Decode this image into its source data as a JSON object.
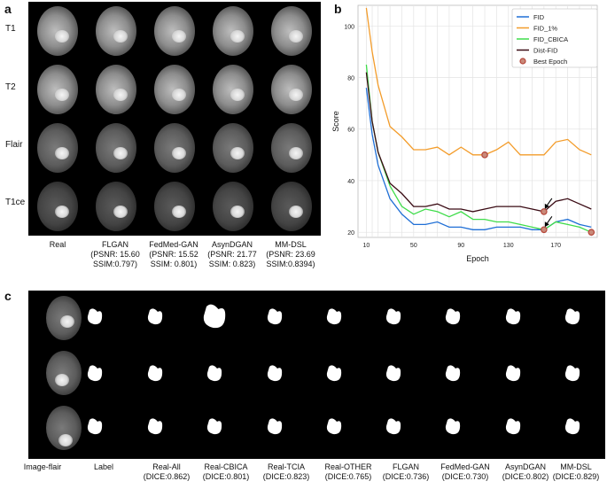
{
  "panels": {
    "a": "a",
    "b": "b",
    "c": "c"
  },
  "panel_a": {
    "row_labels": [
      "T1",
      "T2",
      "Flair",
      "T1ce"
    ],
    "col_labels": [
      [
        "Real",
        "",
        ""
      ],
      [
        "FLGAN",
        "(PSNR: 15.60",
        "SSIM:0.797)"
      ],
      [
        "FedMed-GAN",
        "(PSNR: 15.52",
        "SSIM: 0.801)"
      ],
      [
        "AsynDGAN",
        "(PSNR: 21.77",
        "SSIM: 0.823)"
      ],
      [
        "MM-DSL",
        "(PSNR: 23.69",
        "SSIM:0.8394)"
      ]
    ]
  },
  "chart_data": {
    "type": "line",
    "xlabel": "Epoch",
    "ylabel": "Score",
    "x": [
      10,
      15,
      20,
      30,
      40,
      50,
      60,
      70,
      80,
      90,
      100,
      110,
      120,
      130,
      140,
      150,
      160,
      170,
      180,
      190,
      200
    ],
    "xticks": [
      10,
      50,
      90,
      130,
      170
    ],
    "yticks": [
      20,
      40,
      60,
      80,
      100
    ],
    "ylim": [
      18,
      108
    ],
    "xlim": [
      3,
      205
    ],
    "series": [
      {
        "name": "FID",
        "color": "#1f6fd6",
        "values": [
          76,
          58,
          46,
          33,
          27,
          23,
          23,
          24,
          22,
          22,
          21,
          21,
          22,
          22,
          22,
          21,
          21,
          24,
          25,
          23,
          22
        ]
      },
      {
        "name": "FID_1%",
        "color": "#f39c2a",
        "values": [
          107,
          90,
          77,
          61,
          57,
          52,
          52,
          53,
          50,
          53,
          50,
          50,
          52,
          55,
          50,
          50,
          50,
          55,
          56,
          52,
          50
        ]
      },
      {
        "name": "FID_CBICA",
        "color": "#3fdc4a",
        "values": [
          85,
          63,
          51,
          38,
          30,
          27,
          29,
          28,
          26,
          28,
          25,
          25,
          24,
          24,
          23,
          22,
          21,
          24,
          23,
          22,
          20
        ]
      },
      {
        "name": "Dist-FID",
        "color": "#3a0b14",
        "values": [
          82,
          63,
          51,
          39,
          35,
          30,
          30,
          31,
          29,
          29,
          28,
          29,
          30,
          30,
          30,
          29,
          28,
          32,
          33,
          31,
          29
        ]
      }
    ],
    "best_epoch_label": "Best Epoch",
    "best_points": [
      {
        "x": 110,
        "y": 50
      },
      {
        "x": 160,
        "y": 28
      },
      {
        "x": 160,
        "y": 21
      },
      {
        "x": 200,
        "y": 20
      }
    ],
    "arrows_at": [
      {
        "x": 160,
        "y": 28
      },
      {
        "x": 160,
        "y": 21
      }
    ],
    "grid": true,
    "legend": "top-right"
  },
  "panel_c": {
    "col_labels": [
      [
        "Image-flair",
        ""
      ],
      [
        "Label",
        ""
      ],
      [
        "Real-All",
        "(DICE:0.862)"
      ],
      [
        "Real-CBICA",
        "(DICE:0.801)"
      ],
      [
        "Real-TCIA",
        "(DICE:0.823)"
      ],
      [
        "Real-OTHER",
        "(DICE:0.765)"
      ],
      [
        "FLGAN",
        "(DICE:0.736)"
      ],
      [
        "FedMed-GAN",
        "(DICE:0.730)"
      ],
      [
        "AsynDGAN",
        "(DICE:0.802)"
      ],
      [
        "MM-DSL",
        "(DICE:0.829)"
      ]
    ]
  }
}
